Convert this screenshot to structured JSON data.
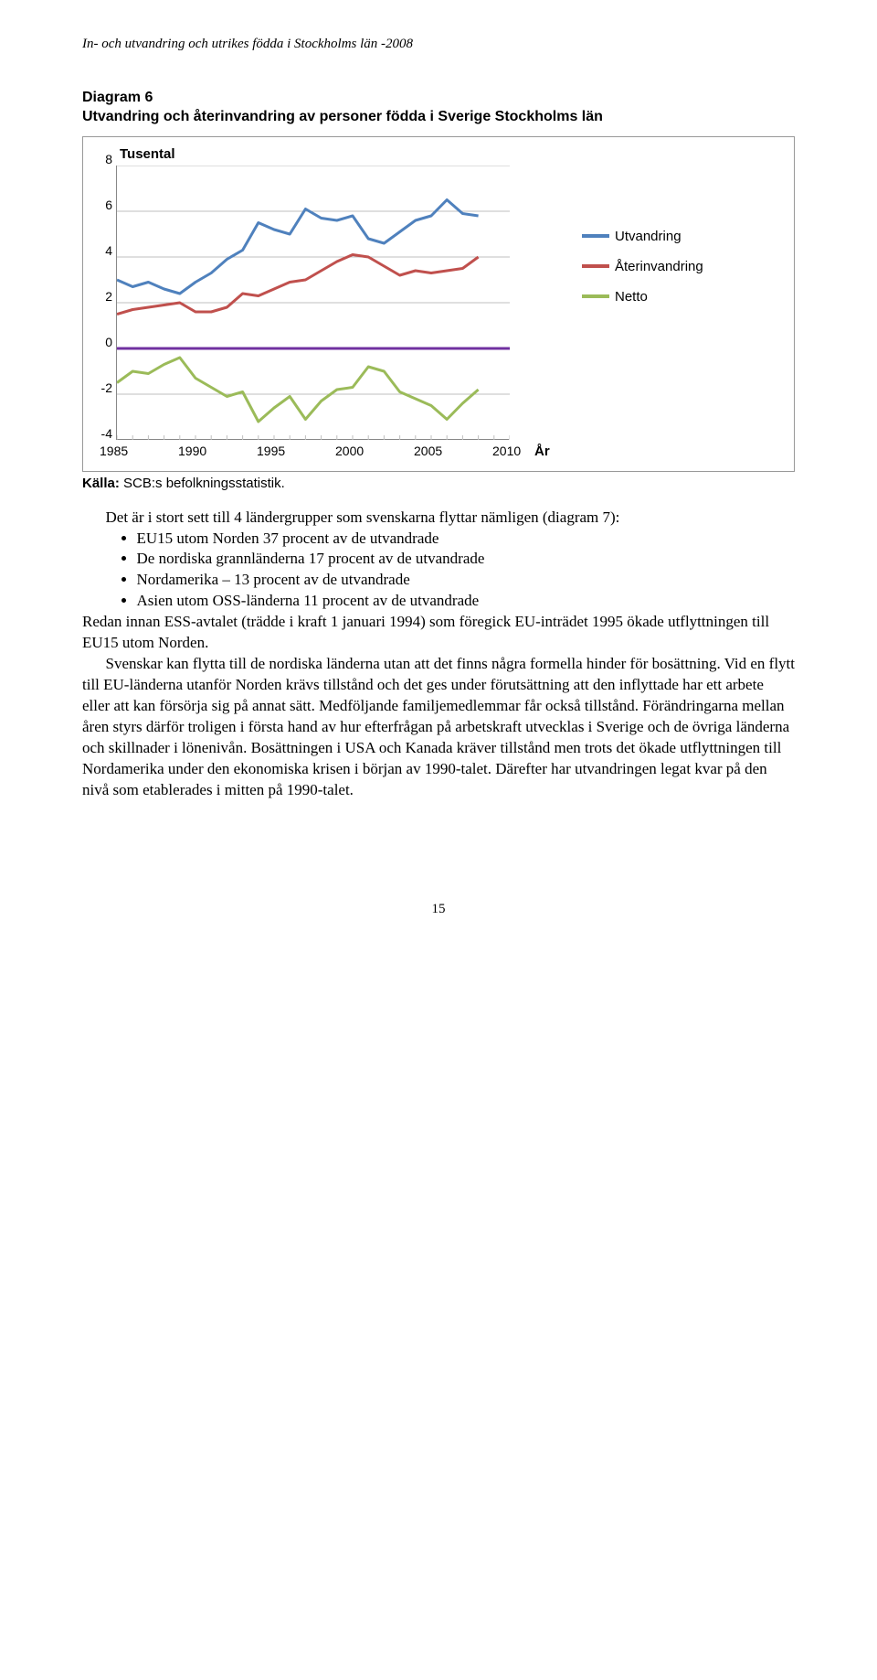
{
  "header": "In- och utvandring och utrikes födda i Stockholms län -2008",
  "diagram": {
    "label": "Diagram 6",
    "title": "Utvandring och återinvandring av personer födda i Sverige Stockholms län"
  },
  "chart": {
    "type": "line",
    "ylabel": "Tusental",
    "xaxis_label": "År",
    "background_color": "#ffffff",
    "grid_color": "#bfbfbf",
    "line_width": 3,
    "ylim": [
      -4,
      8
    ],
    "yticks": [
      8,
      6,
      4,
      2,
      0,
      -2,
      -4
    ],
    "x_start": 1985,
    "x_end": 2010,
    "xticks": [
      1985,
      1990,
      1995,
      2000,
      2005,
      2010
    ],
    "series": [
      {
        "name": "Utvandring",
        "color": "#4f81bd",
        "label": "Utvandring",
        "points": [
          [
            1985,
            3.0
          ],
          [
            1986,
            2.7
          ],
          [
            1987,
            2.9
          ],
          [
            1988,
            2.6
          ],
          [
            1989,
            2.4
          ],
          [
            1990,
            2.9
          ],
          [
            1991,
            3.3
          ],
          [
            1992,
            3.9
          ],
          [
            1993,
            4.3
          ],
          [
            1994,
            5.5
          ],
          [
            1995,
            5.2
          ],
          [
            1996,
            5.0
          ],
          [
            1997,
            6.1
          ],
          [
            1998,
            5.7
          ],
          [
            1999,
            5.6
          ],
          [
            2000,
            5.8
          ],
          [
            2001,
            4.8
          ],
          [
            2002,
            4.6
          ],
          [
            2003,
            5.1
          ],
          [
            2004,
            5.6
          ],
          [
            2005,
            5.8
          ],
          [
            2006,
            6.5
          ],
          [
            2007,
            5.9
          ],
          [
            2008,
            5.8
          ]
        ]
      },
      {
        "name": "Återinvandring",
        "color": "#c0504d",
        "label": "Återinvandring",
        "points": [
          [
            1985,
            1.5
          ],
          [
            1986,
            1.7
          ],
          [
            1987,
            1.8
          ],
          [
            1988,
            1.9
          ],
          [
            1989,
            2.0
          ],
          [
            1990,
            1.6
          ],
          [
            1991,
            1.6
          ],
          [
            1992,
            1.8
          ],
          [
            1993,
            2.4
          ],
          [
            1994,
            2.3
          ],
          [
            1995,
            2.6
          ],
          [
            1996,
            2.9
          ],
          [
            1997,
            3.0
          ],
          [
            1998,
            3.4
          ],
          [
            1999,
            3.8
          ],
          [
            2000,
            4.1
          ],
          [
            2001,
            4.0
          ],
          [
            2002,
            3.6
          ],
          [
            2003,
            3.2
          ],
          [
            2004,
            3.4
          ],
          [
            2005,
            3.3
          ],
          [
            2006,
            3.4
          ],
          [
            2007,
            3.5
          ],
          [
            2008,
            4.0
          ]
        ]
      },
      {
        "name": "Netto",
        "color": "#9bbb59",
        "label": "Netto",
        "points": [
          [
            1985,
            -1.5
          ],
          [
            1986,
            -1.0
          ],
          [
            1987,
            -1.1
          ],
          [
            1988,
            -0.7
          ],
          [
            1989,
            -0.4
          ],
          [
            1990,
            -1.3
          ],
          [
            1991,
            -1.7
          ],
          [
            1992,
            -2.1
          ],
          [
            1993,
            -1.9
          ],
          [
            1994,
            -3.2
          ],
          [
            1995,
            -2.6
          ],
          [
            1996,
            -2.1
          ],
          [
            1997,
            -3.1
          ],
          [
            1998,
            -2.3
          ],
          [
            1999,
            -1.8
          ],
          [
            2000,
            -1.7
          ],
          [
            2001,
            -0.8
          ],
          [
            2002,
            -1.0
          ],
          [
            2003,
            -1.9
          ],
          [
            2004,
            -2.2
          ],
          [
            2005,
            -2.5
          ],
          [
            2006,
            -3.1
          ],
          [
            2007,
            -2.4
          ],
          [
            2008,
            -1.8
          ]
        ]
      }
    ],
    "zero_line_color": "#7030a0"
  },
  "source": {
    "label": "Källa:",
    "text": "SCB:s befolkningsstatistik."
  },
  "body": {
    "intro": "Det är i stort sett till 4 ländergrupper som svenskarna flyttar nämligen (diagram 7):",
    "bullets": [
      "EU15 utom Norden 37 procent av de utvandrade",
      "De nordiska grannländerna 17 procent av de utvandrade",
      "Nordamerika – 13 procent av de utvandrade",
      "Asien utom OSS-länderna 11 procent av de utvandrade"
    ],
    "p1": "Redan innan ESS-avtalet (trädde i kraft 1 januari 1994) som föregick EU-inträdet 1995 ökade utflyttningen till EU15 utom Norden.",
    "p2": "Svenskar kan flytta till de nordiska länderna utan att det finns några formella hinder för bosättning. Vid en flytt till EU-länderna utanför Norden krävs tillstånd och det ges under förutsättning att den inflyttade har ett arbete eller att kan försörja sig på annat sätt. Medföljande familjemedlemmar får också tillstånd. Förändringarna mellan åren styrs därför troligen i första hand av hur efterfrågan på arbetskraft utvecklas i Sverige och de övriga länderna och skillnader i lönenivån. Bosättningen i USA och Kanada kräver tillstånd men trots det ökade utflyttningen till Nordamerika under den ekonomiska krisen i början av 1990-talet. Därefter har utvandringen legat kvar på den nivå som etablerades i mitten på 1990-talet."
  },
  "page_number": "15"
}
